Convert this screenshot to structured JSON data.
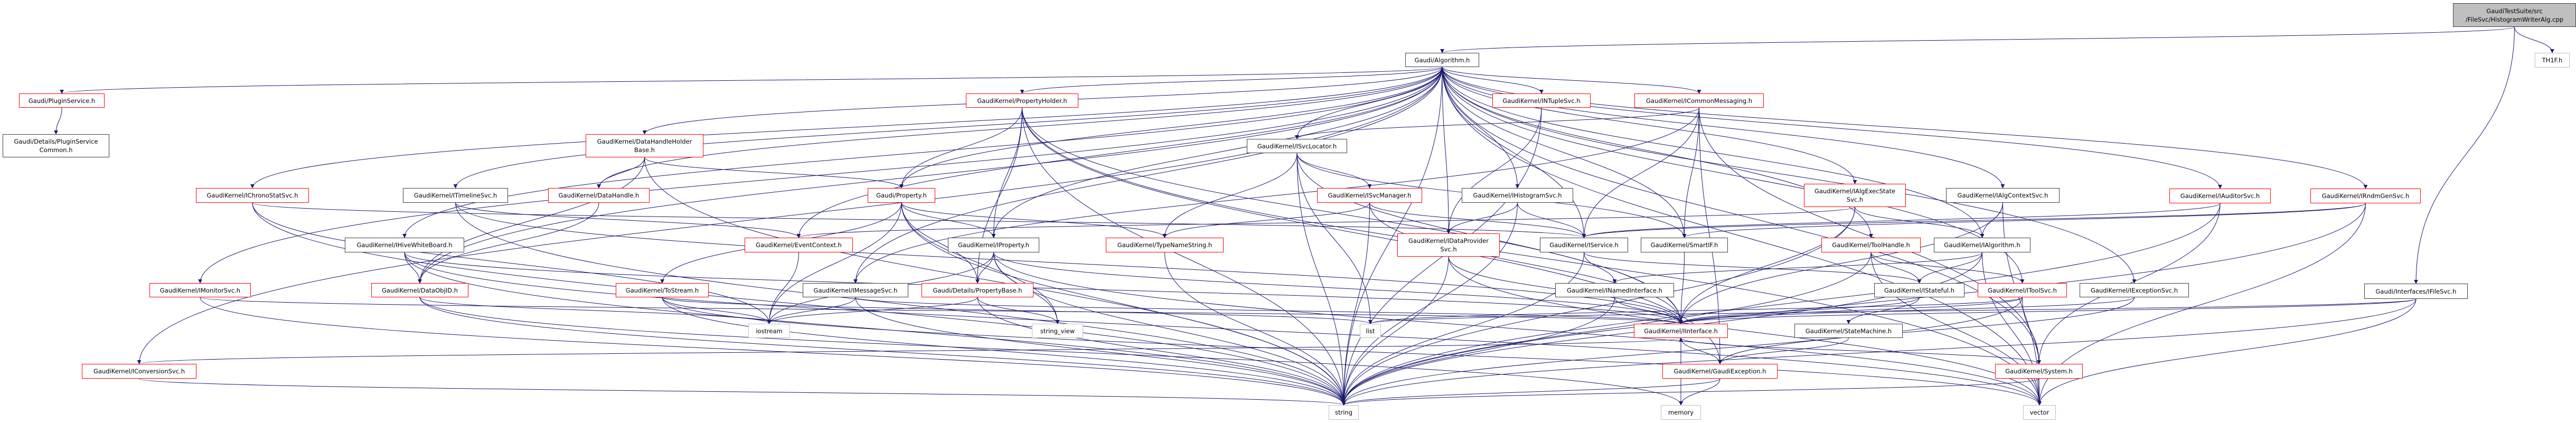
{
  "graph": {
    "edge_color": "#191970",
    "border_colors": {
      "red": "#ff0000",
      "black": "#404040",
      "grey": "#bfbfbf",
      "root_fill": "#bfbfbf"
    },
    "nodes": [
      {
        "id": "root",
        "kind": "root",
        "lines": [
          "GaudiTestSuite/src",
          "/FileSvc/HistogramWriterAlg.cpp"
        ]
      },
      {
        "id": "th1f",
        "kind": "grey",
        "lines": [
          "TH1F.h"
        ]
      },
      {
        "id": "algorithm",
        "kind": "black",
        "lines": [
          "Gaudi/Algorithm.h"
        ]
      },
      {
        "id": "pluginservice",
        "kind": "red",
        "lines": [
          "Gaudi/PluginService.h"
        ]
      },
      {
        "id": "pluginservicecommon",
        "kind": "black",
        "lines": [
          "Gaudi/Details/PluginService",
          "Common.h"
        ]
      },
      {
        "id": "propertyholder",
        "kind": "red",
        "lines": [
          "GaudiKernel/PropertyHolder.h"
        ]
      },
      {
        "id": "intuplesvc",
        "kind": "red",
        "lines": [
          "GaudiKernel/INTupleSvc.h"
        ]
      },
      {
        "id": "icommonmessaging",
        "kind": "red",
        "lines": [
          "GaudiKernel/ICommonMessaging.h"
        ]
      },
      {
        "id": "datahandleholderbase",
        "kind": "red",
        "lines": [
          "GaudiKernel/DataHandleHolder",
          "Base.h"
        ]
      },
      {
        "id": "isvclocator",
        "kind": "black",
        "lines": [
          "GaudiKernel/ISvcLocator.h"
        ]
      },
      {
        "id": "ichronostatsvc",
        "kind": "red",
        "lines": [
          "GaudiKernel/IChronoStatSvc.h"
        ]
      },
      {
        "id": "itimelinesvc",
        "kind": "black",
        "lines": [
          "GaudiKernel/ITimelineSvc.h"
        ]
      },
      {
        "id": "datahandle",
        "kind": "red",
        "lines": [
          "GaudiKernel/DataHandle.h"
        ]
      },
      {
        "id": "property",
        "kind": "red",
        "lines": [
          "Gaudi/Property.h"
        ]
      },
      {
        "id": "isvcmanager",
        "kind": "red",
        "lines": [
          "GaudiKernel/ISvcManager.h"
        ]
      },
      {
        "id": "ihistogramsvc",
        "kind": "black",
        "lines": [
          "GaudiKernel/IHistogramSvc.h"
        ]
      },
      {
        "id": "ialgexecstatesvc",
        "kind": "red",
        "lines": [
          "GaudiKernel/IAlgExecState",
          "Svc.h"
        ]
      },
      {
        "id": "ialgcontextsvc",
        "kind": "black",
        "lines": [
          "GaudiKernel/IAlgContextSvc.h"
        ]
      },
      {
        "id": "iauditorsvc",
        "kind": "red",
        "lines": [
          "GaudiKernel/IAuditorSvc.h"
        ]
      },
      {
        "id": "irndmgensvc",
        "kind": "red",
        "lines": [
          "GaudiKernel/IRndmGenSvc.h"
        ]
      },
      {
        "id": "ihivewhiteboard",
        "kind": "black",
        "lines": [
          "GaudiKernel/IHiveWhiteBoard.h"
        ]
      },
      {
        "id": "eventcontext",
        "kind": "red",
        "lines": [
          "GaudiKernel/EventContext.h"
        ]
      },
      {
        "id": "iproperty",
        "kind": "black",
        "lines": [
          "GaudiKernel/IProperty.h"
        ]
      },
      {
        "id": "typenamestring",
        "kind": "red",
        "lines": [
          "GaudiKernel/TypeNameString.h"
        ]
      },
      {
        "id": "idataprovidersvc",
        "kind": "red",
        "lines": [
          "GaudiKernel/IDataProvider",
          "Svc.h"
        ]
      },
      {
        "id": "iservice",
        "kind": "black",
        "lines": [
          "GaudiKernel/IService.h"
        ]
      },
      {
        "id": "smartif",
        "kind": "black",
        "lines": [
          "GaudiKernel/SmartIF.h"
        ]
      },
      {
        "id": "toolhandle",
        "kind": "red",
        "lines": [
          "GaudiKernel/ToolHandle.h"
        ]
      },
      {
        "id": "ialgorithm",
        "kind": "black",
        "lines": [
          "GaudiKernel/IAlgorithm.h"
        ]
      },
      {
        "id": "imonitorsvc",
        "kind": "red",
        "lines": [
          "GaudiKernel/IMonitorSvc.h"
        ]
      },
      {
        "id": "dataobjid",
        "kind": "red",
        "lines": [
          "GaudiKernel/DataObjID.h"
        ]
      },
      {
        "id": "tostream",
        "kind": "red",
        "lines": [
          "GaudiKernel/ToStream.h"
        ]
      },
      {
        "id": "imessagesvc",
        "kind": "black",
        "lines": [
          "GaudiKernel/IMessageSvc.h"
        ]
      },
      {
        "id": "propertybase",
        "kind": "red",
        "lines": [
          "Gaudi/Details/PropertyBase.h"
        ]
      },
      {
        "id": "inamedinterface",
        "kind": "black",
        "lines": [
          "GaudiKernel/INamedInterface.h"
        ]
      },
      {
        "id": "istateful",
        "kind": "black",
        "lines": [
          "GaudiKernel/IStateful.h"
        ]
      },
      {
        "id": "itoolsvc",
        "kind": "red",
        "lines": [
          "GaudiKernel/IToolSvc.h"
        ]
      },
      {
        "id": "iexceptionsvc",
        "kind": "black",
        "lines": [
          "GaudiKernel/IExceptionSvc.h"
        ]
      },
      {
        "id": "ifilesvc",
        "kind": "black",
        "lines": [
          "Gaudi/Interfaces/IFileSvc.h"
        ]
      },
      {
        "id": "iostream",
        "kind": "grey",
        "lines": [
          "iostream"
        ]
      },
      {
        "id": "string_view",
        "kind": "grey",
        "lines": [
          "string_view"
        ]
      },
      {
        "id": "list",
        "kind": "grey",
        "lines": [
          "list"
        ]
      },
      {
        "id": "iinterface",
        "kind": "red",
        "lines": [
          "GaudiKernel/IInterface.h"
        ]
      },
      {
        "id": "statemachine",
        "kind": "black",
        "lines": [
          "GaudiKernel/StateMachine.h"
        ]
      },
      {
        "id": "iconversionsvc",
        "kind": "red",
        "lines": [
          "GaudiKernel/IConversionSvc.h"
        ]
      },
      {
        "id": "gaudiexception",
        "kind": "red",
        "lines": [
          "GaudiKernel/GaudiException.h"
        ]
      },
      {
        "id": "system",
        "kind": "red",
        "lines": [
          "GaudiKernel/System.h"
        ]
      },
      {
        "id": "string",
        "kind": "grey",
        "lines": [
          "string"
        ]
      },
      {
        "id": "memory",
        "kind": "grey",
        "lines": [
          "memory"
        ]
      },
      {
        "id": "vector",
        "kind": "grey",
        "lines": [
          "vector"
        ]
      }
    ],
    "edges": [
      [
        "root",
        "algorithm"
      ],
      [
        "root",
        "th1f"
      ],
      [
        "root",
        "ifilesvc"
      ],
      [
        "algorithm",
        "pluginservice"
      ],
      [
        "algorithm",
        "propertyholder"
      ],
      [
        "algorithm",
        "intuplesvc"
      ],
      [
        "algorithm",
        "icommonmessaging"
      ],
      [
        "algorithm",
        "datahandleholderbase"
      ],
      [
        "algorithm",
        "isvclocator"
      ],
      [
        "algorithm",
        "ichronostatsvc"
      ],
      [
        "algorithm",
        "itimelinesvc"
      ],
      [
        "algorithm",
        "datahandle"
      ],
      [
        "algorithm",
        "property"
      ],
      [
        "algorithm",
        "ihistogramsvc"
      ],
      [
        "algorithm",
        "ialgexecstatesvc"
      ],
      [
        "algorithm",
        "ialgcontextsvc"
      ],
      [
        "algorithm",
        "iauditorsvc"
      ],
      [
        "algorithm",
        "irndmgensvc"
      ],
      [
        "algorithm",
        "ihivewhiteboard"
      ],
      [
        "algorithm",
        "eventcontext"
      ],
      [
        "algorithm",
        "iproperty"
      ],
      [
        "algorithm",
        "idataprovidersvc"
      ],
      [
        "algorithm",
        "iservice"
      ],
      [
        "algorithm",
        "smartif"
      ],
      [
        "algorithm",
        "toolhandle"
      ],
      [
        "algorithm",
        "ialgorithm"
      ],
      [
        "algorithm",
        "imonitorsvc"
      ],
      [
        "algorithm",
        "dataobjid"
      ],
      [
        "algorithm",
        "imessagesvc"
      ],
      [
        "algorithm",
        "itoolsvc"
      ],
      [
        "algorithm",
        "iexceptionsvc"
      ],
      [
        "algorithm",
        "iconversionsvc"
      ],
      [
        "algorithm",
        "system"
      ],
      [
        "algorithm",
        "string"
      ],
      [
        "algorithm",
        "vector"
      ],
      [
        "pluginservice",
        "pluginservicecommon"
      ],
      [
        "propertyholder",
        "property"
      ],
      [
        "propertyholder",
        "iproperty"
      ],
      [
        "propertyholder",
        "propertybase"
      ],
      [
        "propertyholder",
        "iinterface"
      ],
      [
        "propertyholder",
        "gaudiexception"
      ],
      [
        "propertyholder",
        "string"
      ],
      [
        "propertyholder",
        "vector"
      ],
      [
        "icommonmessaging",
        "isvclocator"
      ],
      [
        "icommonmessaging",
        "iservice"
      ],
      [
        "icommonmessaging",
        "smartif"
      ],
      [
        "icommonmessaging",
        "imessagesvc"
      ],
      [
        "icommonmessaging",
        "gaudiexception"
      ],
      [
        "icommonmessaging",
        "system"
      ],
      [
        "datahandleholderbase",
        "datahandle"
      ],
      [
        "datahandleholderbase",
        "property"
      ],
      [
        "datahandleholderbase",
        "dataobjid"
      ],
      [
        "datahandleholderbase",
        "string"
      ],
      [
        "isvclocator",
        "isvcmanager"
      ],
      [
        "isvclocator",
        "typenamestring"
      ],
      [
        "isvclocator",
        "iinterface"
      ],
      [
        "isvclocator",
        "smartif"
      ],
      [
        "isvclocator",
        "list"
      ],
      [
        "isvclocator",
        "string"
      ],
      [
        "ichronostatsvc",
        "iservice"
      ],
      [
        "ichronostatsvc",
        "iostream"
      ],
      [
        "ichronostatsvc",
        "string"
      ],
      [
        "itimelinesvc",
        "eventcontext"
      ],
      [
        "itimelinesvc",
        "iinterface"
      ],
      [
        "itimelinesvc",
        "string"
      ],
      [
        "datahandle",
        "dataobjid"
      ],
      [
        "property",
        "iproperty"
      ],
      [
        "property",
        "propertybase"
      ],
      [
        "property",
        "tostream"
      ],
      [
        "property",
        "typenamestring"
      ],
      [
        "property",
        "string"
      ],
      [
        "property",
        "string_view"
      ],
      [
        "property",
        "iostream"
      ],
      [
        "iproperty",
        "propertybase"
      ],
      [
        "iproperty",
        "iostream"
      ],
      [
        "iproperty",
        "string"
      ],
      [
        "iproperty",
        "string_view"
      ],
      [
        "iproperty",
        "iinterface"
      ],
      [
        "iproperty",
        "vector"
      ],
      [
        "propertybase",
        "iostream"
      ],
      [
        "propertybase",
        "string_view"
      ],
      [
        "propertybase",
        "string"
      ],
      [
        "tostream",
        "iostream"
      ],
      [
        "tostream",
        "string"
      ],
      [
        "tostream",
        "vector"
      ],
      [
        "tostream",
        "list"
      ],
      [
        "imessagesvc",
        "iostream"
      ],
      [
        "imessagesvc",
        "iinterface"
      ],
      [
        "imessagesvc",
        "string"
      ],
      [
        "ihivewhiteboard",
        "dataobjid"
      ],
      [
        "ihivewhiteboard",
        "iinterface"
      ],
      [
        "ihivewhiteboard",
        "string"
      ],
      [
        "ihivewhiteboard",
        "vector"
      ],
      [
        "imonitorsvc",
        "iinterface"
      ],
      [
        "imonitorsvc",
        "string"
      ],
      [
        "dataobjid",
        "iostream"
      ],
      [
        "dataobjid",
        "string"
      ],
      [
        "dataobjid",
        "memory"
      ],
      [
        "iconversionsvc",
        "iinterface"
      ],
      [
        "iconversionsvc",
        "string"
      ],
      [
        "isvcmanager",
        "iservice"
      ],
      [
        "isvcmanager",
        "typenamestring"
      ],
      [
        "isvcmanager",
        "iinterface"
      ],
      [
        "isvcmanager",
        "string"
      ],
      [
        "ihistogramsvc",
        "idataprovidersvc"
      ],
      [
        "ihistogramsvc",
        "iservice"
      ],
      [
        "ihistogramsvc",
        "string"
      ],
      [
        "intuplesvc",
        "idataprovidersvc"
      ],
      [
        "intuplesvc",
        "string"
      ],
      [
        "idataprovidersvc",
        "iinterface"
      ],
      [
        "idataprovidersvc",
        "string"
      ],
      [
        "idataprovidersvc",
        "vector"
      ],
      [
        "iservice",
        "inamedinterface"
      ],
      [
        "iservice",
        "istateful"
      ],
      [
        "iservice",
        "string"
      ],
      [
        "smartif",
        "iinterface"
      ],
      [
        "inamedinterface",
        "iinterface"
      ],
      [
        "inamedinterface",
        "string"
      ],
      [
        "iinterface",
        "system"
      ],
      [
        "iinterface",
        "memory"
      ],
      [
        "iinterface",
        "gaudiexception"
      ],
      [
        "toolhandle",
        "itoolsvc"
      ],
      [
        "toolhandle",
        "istateful"
      ],
      [
        "toolhandle",
        "string"
      ],
      [
        "toolhandle",
        "vector"
      ],
      [
        "ialgorithm",
        "istateful"
      ],
      [
        "ialgorithm",
        "inamedinterface"
      ],
      [
        "ialgorithm",
        "string"
      ],
      [
        "ialgorithm",
        "vector"
      ],
      [
        "istateful",
        "statemachine"
      ],
      [
        "istateful",
        "iinterface"
      ],
      [
        "itoolsvc",
        "iinterface"
      ],
      [
        "itoolsvc",
        "system"
      ],
      [
        "itoolsvc",
        "string"
      ],
      [
        "itoolsvc",
        "list"
      ],
      [
        "iexceptionsvc",
        "iinterface"
      ],
      [
        "iexceptionsvc",
        "gaudiexception"
      ],
      [
        "system",
        "vector"
      ],
      [
        "system",
        "string"
      ],
      [
        "gaudiexception",
        "string"
      ],
      [
        "gaudiexception",
        "memory"
      ],
      [
        "statemachine",
        "gaudiexception"
      ],
      [
        "ialgcontextsvc",
        "ialgorithm"
      ],
      [
        "ialgcontextsvc",
        "iinterface"
      ],
      [
        "ialgcontextsvc",
        "vector"
      ],
      [
        "ialgexecstatesvc",
        "ialgorithm"
      ],
      [
        "ialgexecstatesvc",
        "eventcontext"
      ],
      [
        "ialgexecstatesvc",
        "iinterface"
      ],
      [
        "ialgexecstatesvc",
        "string"
      ],
      [
        "iauditorsvc",
        "iservice"
      ],
      [
        "iauditorsvc",
        "system"
      ],
      [
        "iauditorsvc",
        "string"
      ],
      [
        "irndmgensvc",
        "iservice"
      ],
      [
        "irndmgensvc",
        "smartif"
      ],
      [
        "irndmgensvc",
        "vector"
      ],
      [
        "irndmgensvc",
        "string"
      ],
      [
        "ifilesvc",
        "iinterface"
      ],
      [
        "ifilesvc",
        "string"
      ],
      [
        "ifilesvc",
        "vector"
      ],
      [
        "ifilesvc",
        "list"
      ],
      [
        "typenamestring",
        "string"
      ],
      [
        "eventcontext",
        "iostream"
      ]
    ]
  }
}
